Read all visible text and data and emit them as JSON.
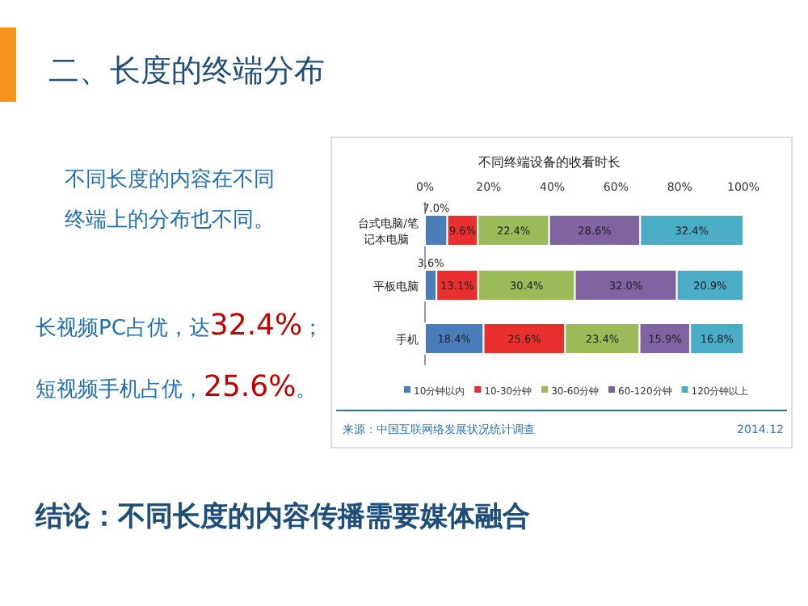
{
  "chart_data": {
    "type": "bar",
    "orientation": "horizontal",
    "stacked": true,
    "title": "二、长度的终端分布",
    "subtitle": "不同终端设备的收看时长",
    "categories": [
      "台式电脑/笔记本电脑",
      "平板电脑",
      "手机"
    ],
    "series": [
      {
        "name": "10分钟以内",
        "color": "#4a7ebb",
        "values": [
          7.0,
          3.6,
          18.4
        ],
        "value_labels": [
          "7.0%",
          "3.6%",
          "18.4%"
        ]
      },
      {
        "name": "10-30分钟",
        "color": "#e8312f",
        "values": [
          9.6,
          13.1,
          25.6
        ],
        "value_labels": [
          "9.6%",
          "13.1%",
          "25.6%"
        ]
      },
      {
        "name": "30-60分钟",
        "color": "#9bbb59",
        "values": [
          22.4,
          30.4,
          23.4
        ],
        "value_labels": [
          "22.4%",
          "30.4%",
          "23.4%"
        ]
      },
      {
        "name": "60-120分钟",
        "color": "#8064a2",
        "values": [
          28.6,
          32.0,
          15.9
        ],
        "value_labels": [
          "28.6%",
          "32.0%",
          "15.9%"
        ]
      },
      {
        "name": "120分钟以上",
        "color": "#4bacc6",
        "values": [
          32.4,
          20.9,
          16.8
        ],
        "value_labels": [
          "32.4%",
          "20.9%",
          "16.8%"
        ]
      }
    ],
    "xlim": [
      0,
      100
    ],
    "xticks": [
      {
        "value": 0,
        "label": "0%"
      },
      {
        "value": 20,
        "label": "20%"
      },
      {
        "value": 40,
        "label": "40%"
      },
      {
        "value": 60,
        "label": "60%"
      },
      {
        "value": 80,
        "label": "80%"
      },
      {
        "value": 100,
        "label": "100%"
      }
    ],
    "legend": "bottom",
    "annotations": [
      "不同长度的内容在不同终端上的分布也不同。",
      "长视频PC占优，达32.4%；",
      "短视频手机占优，25.6%。",
      "结论：不同长度的内容传播需要媒体融合",
      "来源：中国互联网络发展状况统计调查",
      "2014.12"
    ]
  }
}
